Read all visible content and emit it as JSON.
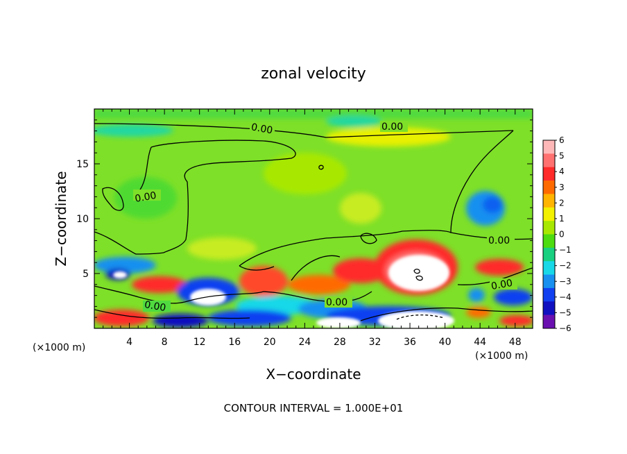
{
  "chart_data": {
    "type": "heatmap",
    "title": "zonal velocity",
    "xlabel": "X−coordinate",
    "ylabel": "Z−coordinate",
    "x_unit_left": "(×1000 m)",
    "x_unit_right": "(×1000 m)",
    "footer": "CONTOUR INTERVAL = 1.000E+01",
    "xlim": [
      0,
      50
    ],
    "ylim": [
      0,
      20
    ],
    "x_ticks": [
      "4",
      "8",
      "12",
      "16",
      "20",
      "24",
      "28",
      "32",
      "36",
      "40",
      "44",
      "48"
    ],
    "y_ticks": [
      "5",
      "10",
      "15"
    ],
    "colorbar": {
      "ticks": [
        "6",
        "5",
        "4",
        "3",
        "2",
        "1",
        "0",
        "−1",
        "−2",
        "−3",
        "−4",
        "−5",
        "−6"
      ],
      "colors": [
        "#ffb8b8",
        "#ff7070",
        "#ff2a2a",
        "#ff6a00",
        "#ffb400",
        "#f3f000",
        "#a8e800",
        "#4cdc10",
        "#18d080",
        "#18d8e8",
        "#1890f0",
        "#1040f0",
        "#1010c0",
        "#6a10b0"
      ]
    },
    "contour_label": "0.00",
    "background_value": 0.6
  }
}
